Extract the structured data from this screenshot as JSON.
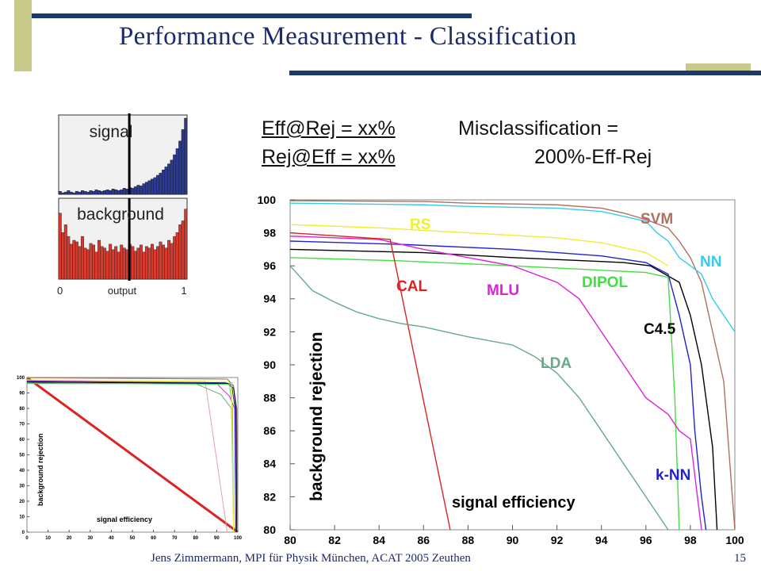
{
  "slide": {
    "title": "Performance Measurement - Classification",
    "footer": "Jens Zimmermann, MPI für Physik München, ACAT 2005 Zeuthen",
    "page_number": "15",
    "accent_colors": {
      "olive": "#c9c98c",
      "navy": "#1b3a6b"
    }
  },
  "definitions": {
    "eff_at_rej": "Eff@Rej = xx%",
    "rej_at_eff": "Rej@Eff = xx%",
    "misclass_line1": "Misclassification =",
    "misclass_line2": "200%-Eff-Rej"
  },
  "histogram": {
    "signal_label": "signal",
    "background_label": "background",
    "x_tick_left": "0",
    "x_label": "output",
    "x_tick_right": "1",
    "signal_color": "#2b3a8f",
    "background_color": "#d93a2e",
    "cut_position": 0.55,
    "signal_bins": [
      0.04,
      0.02,
      0.03,
      0.05,
      0.03,
      0.02,
      0.04,
      0.03,
      0.05,
      0.04,
      0.03,
      0.05,
      0.04,
      0.06,
      0.05,
      0.04,
      0.05,
      0.06,
      0.05,
      0.07,
      0.06,
      0.05,
      0.06,
      0.08,
      0.07,
      0.09,
      0.08,
      0.1,
      0.12,
      0.11,
      0.14,
      0.16,
      0.18,
      0.2,
      0.22,
      0.25,
      0.28,
      0.32,
      0.36,
      0.4,
      0.45,
      0.52,
      0.6,
      0.7,
      0.85,
      1.0
    ],
    "background_bins": [
      0.85,
      0.6,
      0.7,
      0.55,
      0.45,
      0.5,
      0.48,
      0.42,
      0.55,
      0.4,
      0.38,
      0.46,
      0.44,
      0.35,
      0.5,
      0.42,
      0.4,
      0.36,
      0.45,
      0.38,
      0.42,
      0.35,
      0.44,
      0.4,
      0.38,
      0.45,
      0.42,
      0.36,
      0.4,
      0.44,
      0.35,
      0.42,
      0.4,
      0.45,
      0.38,
      0.42,
      0.48,
      0.44,
      0.4,
      0.5,
      0.46,
      0.55,
      0.6,
      0.7,
      0.75,
      0.9
    ]
  },
  "chart_data": [
    {
      "type": "line",
      "title": "",
      "xlabel": "signal efficiency",
      "ylabel": "background rejection",
      "xlim": [
        80,
        100
      ],
      "ylim": [
        80,
        100
      ],
      "x_ticks": [
        "80",
        "82",
        "84",
        "86",
        "88",
        "90",
        "92",
        "94",
        "96",
        "98",
        "100"
      ],
      "y_ticks": [
        "80",
        "82",
        "84",
        "86",
        "88",
        "90",
        "92",
        "94",
        "96",
        "98",
        "100"
      ],
      "grid": false,
      "series": [
        {
          "name": "SVM",
          "color": "#b07060",
          "x": [
            80,
            86,
            88,
            92,
            94,
            95,
            96,
            97,
            97.5,
            98,
            98.5,
            99,
            99.5,
            100
          ],
          "y": [
            99.95,
            99.9,
            99.8,
            99.7,
            99.5,
            99.2,
            98.8,
            98.3,
            97.5,
            96.5,
            95,
            92,
            89,
            80
          ]
        },
        {
          "name": "NN",
          "color": "#33ccee",
          "x": [
            80,
            86,
            88,
            92,
            94,
            95,
            96,
            96.5,
            97,
            97.5,
            98,
            98.5,
            99,
            99.5,
            100
          ],
          "y": [
            99.8,
            99.7,
            99.6,
            99.5,
            99.3,
            99,
            98.7,
            98,
            97.5,
            96.5,
            96,
            95.5,
            94,
            93,
            92
          ]
        },
        {
          "name": "RS",
          "color": "#eeee33",
          "x": [
            80,
            84,
            88,
            92,
            94,
            96,
            97
          ],
          "y": [
            98.5,
            98.3,
            98,
            97.7,
            97.4,
            96.8,
            96
          ]
        },
        {
          "name": "C4.5",
          "color": "#000000",
          "x": [
            80,
            86,
            90,
            95,
            96.2,
            97.5,
            98,
            98.5,
            99,
            99.2
          ],
          "y": [
            97,
            96.8,
            96.5,
            96.2,
            96,
            95,
            93,
            90,
            85,
            80
          ]
        },
        {
          "name": "k-NN",
          "color": "#2222cc",
          "x": [
            80,
            85,
            90,
            94,
            96,
            97,
            97.5,
            98,
            98.2,
            98.5,
            98.7
          ],
          "y": [
            97.5,
            97.3,
            97,
            96.6,
            96.2,
            95.5,
            93,
            90,
            86,
            82,
            80
          ]
        },
        {
          "name": "DIPOL",
          "color": "#44dd44",
          "x": [
            80,
            85,
            90,
            96,
            97,
            97.3,
            97.5
          ],
          "y": [
            96.5,
            96.3,
            96,
            95.6,
            95.3,
            88,
            80
          ]
        },
        {
          "name": "MLU",
          "color": "#dd22dd",
          "x": [
            80,
            84,
            86,
            88,
            90,
            92,
            93,
            94,
            95,
            96,
            97,
            97.5,
            98,
            98.5
          ],
          "y": [
            97.8,
            97.6,
            97,
            96.5,
            96,
            95,
            94,
            92,
            90,
            88,
            87,
            86,
            85.5,
            80
          ]
        },
        {
          "name": "CAL",
          "color": "#dd2222",
          "x": [
            80,
            84.5,
            87.2
          ],
          "y": [
            98,
            97.6,
            80
          ]
        },
        {
          "name": "LDA",
          "color": "#66aa88",
          "x": [
            80,
            81,
            82,
            83,
            84,
            85,
            86,
            88,
            90,
            91,
            92,
            93,
            94,
            95,
            96,
            97
          ],
          "y": [
            96,
            94.5,
            93.8,
            93.2,
            92.8,
            92.5,
            92.3,
            91.7,
            91.2,
            90.5,
            89.5,
            88,
            86,
            84,
            82,
            80
          ]
        }
      ]
    },
    {
      "type": "line",
      "title": "",
      "xlabel": "signal efficiency",
      "ylabel": "background rejection",
      "xlim": [
        0,
        100
      ],
      "ylim": [
        0,
        100
      ],
      "x_ticks": [
        "0",
        "10",
        "20",
        "30",
        "40",
        "50",
        "60",
        "70",
        "80",
        "90",
        "100"
      ],
      "y_ticks": [
        "0",
        "10",
        "20",
        "30",
        "40",
        "50",
        "60",
        "70",
        "80",
        "90",
        "100"
      ],
      "grid": false,
      "series": [
        {
          "name": "",
          "color": "#dd2222",
          "x": [
            0,
            100
          ],
          "y": [
            100,
            0
          ]
        },
        {
          "name": "",
          "color": "#e8a0a0",
          "x": [
            0,
            84.5,
            95
          ],
          "y": [
            98,
            97.6,
            0
          ]
        },
        {
          "name": "",
          "color": "#33ccee",
          "x": [
            0,
            95,
            98,
            99,
            100
          ],
          "y": [
            99.8,
            99,
            95,
            80,
            0
          ]
        },
        {
          "name": "",
          "color": "#b07060",
          "x": [
            0,
            95,
            98,
            99.5,
            100
          ],
          "y": [
            99.9,
            99,
            94,
            80,
            0
          ]
        },
        {
          "name": "",
          "color": "#dd22dd",
          "x": [
            0,
            90,
            96,
            98.5,
            99
          ],
          "y": [
            97.8,
            96,
            88,
            80,
            0
          ]
        },
        {
          "name": "",
          "color": "#66aa88",
          "x": [
            0,
            80,
            92,
            97,
            98
          ],
          "y": [
            96,
            96,
            89,
            80,
            0
          ]
        },
        {
          "name": "",
          "color": "#2222cc",
          "x": [
            0,
            94,
            97,
            98.7,
            99
          ],
          "y": [
            97.5,
            96.6,
            95.5,
            80,
            0
          ]
        },
        {
          "name": "",
          "color": "#000000",
          "x": [
            0,
            95,
            98,
            99.2,
            99.5
          ],
          "y": [
            97,
            96.2,
            93,
            80,
            0
          ]
        },
        {
          "name": "",
          "color": "#44dd44",
          "x": [
            0,
            96,
            97.5,
            98
          ],
          "y": [
            96.5,
            95.6,
            80,
            0
          ]
        },
        {
          "name": "",
          "color": "#eeee33",
          "x": [
            0,
            94,
            97,
            98
          ],
          "y": [
            98.5,
            97.4,
            96,
            0
          ]
        }
      ]
    }
  ]
}
